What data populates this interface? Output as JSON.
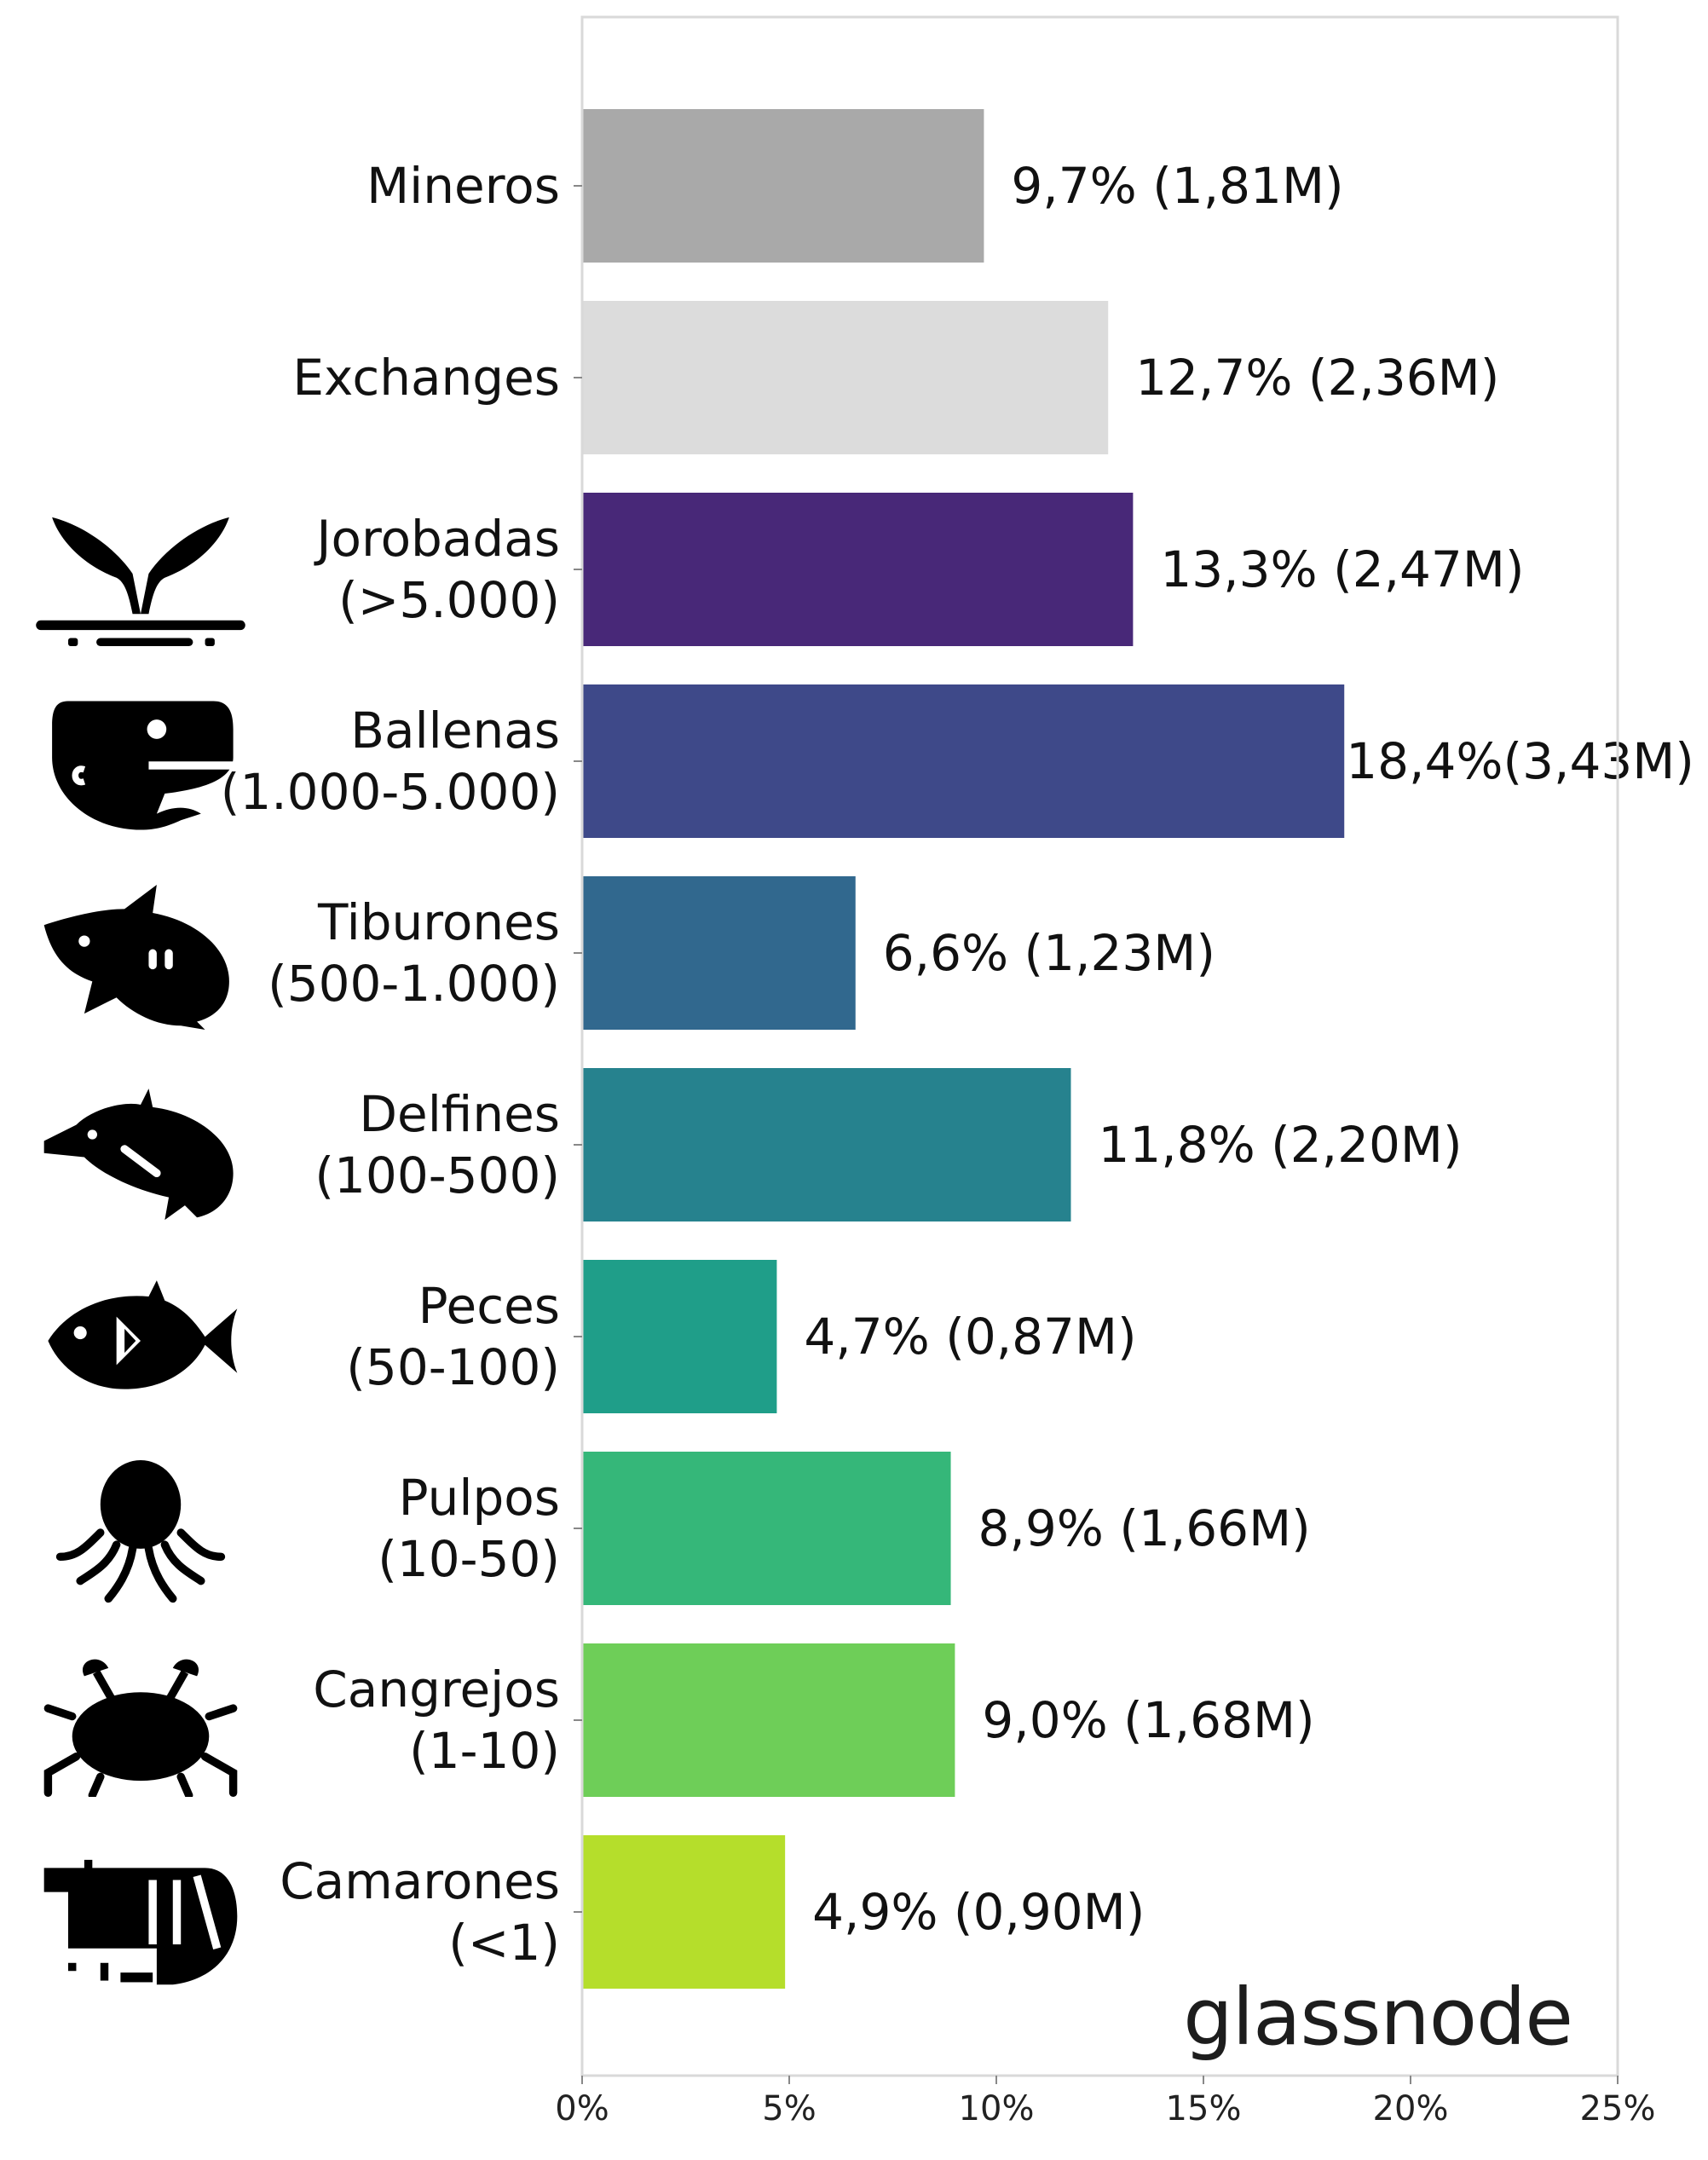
{
  "chart_data": {
    "type": "bar",
    "orientation": "horizontal",
    "categories": [
      [
        "Mineros"
      ],
      [
        "Exchanges"
      ],
      [
        "Jorobadas",
        "(>5.000)"
      ],
      [
        "Ballenas",
        "(1.000-5.000)"
      ],
      [
        "Tiburones",
        "(500-1.000)"
      ],
      [
        "Delfines",
        "(100-500)"
      ],
      [
        "Peces",
        "(50-100)"
      ],
      [
        "Pulpos",
        "(10-50)"
      ],
      [
        "Cangrejos",
        "(1-10)"
      ],
      [
        "Camarones",
        "(<1)"
      ]
    ],
    "values": [
      9.7,
      12.7,
      13.3,
      18.4,
      6.6,
      11.8,
      4.7,
      8.9,
      9.0,
      4.9
    ],
    "value_labels": [
      "9,7% (1,81M)",
      "12,7% (2,36M)",
      "13,3% (2,47M)",
      "18,4%(3,43M)",
      "6,6% (1,23M)",
      "11,8% (2,20M)",
      "4,7% (0,87M)",
      "8,9% (1,66M)",
      "9,0% (1,68M)",
      "4,9% (0,90M)"
    ],
    "colors": [
      "#a9a9a9",
      "#dcdcdc",
      "#482878",
      "#3e4989",
      "#31688e",
      "#26828e",
      "#1f9e89",
      "#35b779",
      "#6ece58",
      "#b5de2b"
    ],
    "icons": [
      null,
      null,
      "whale-tail-icon",
      "whale-icon",
      "orca-icon",
      "dolphin-icon",
      "fish-icon",
      "octopus-icon",
      "crab-icon",
      "shrimp-icon"
    ],
    "xlim": [
      0,
      25
    ],
    "xticks": [
      0,
      5,
      10,
      15,
      20,
      25
    ],
    "xtick_labels": [
      "0%",
      "5%",
      "10%",
      "15%",
      "20%",
      "25%"
    ],
    "grid": false,
    "title": "",
    "xlabel": "",
    "ylabel": ""
  },
  "brand": "glassnode"
}
